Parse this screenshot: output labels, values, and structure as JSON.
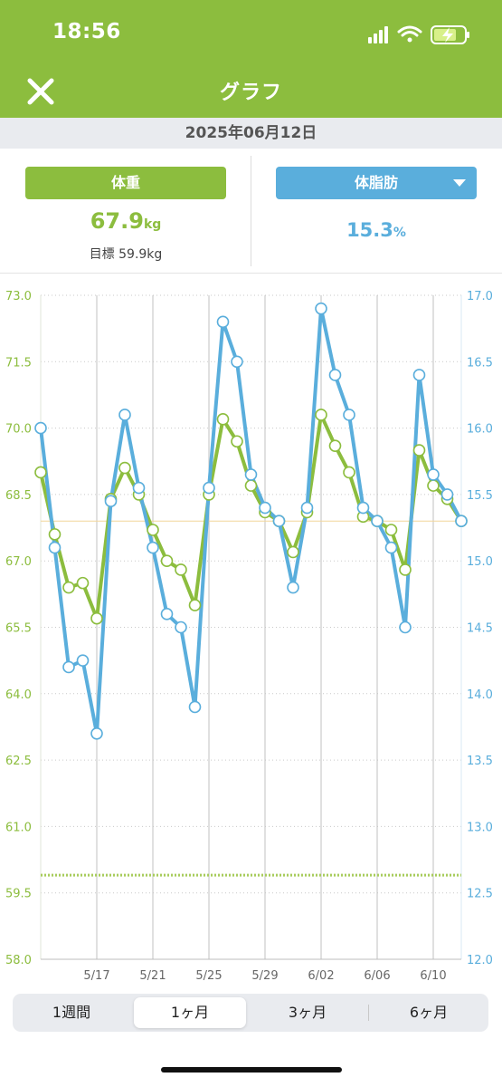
{
  "status": {
    "time": "18:56"
  },
  "nav": {
    "title": "グラフ",
    "close_icon": "close-icon"
  },
  "date": "2025年06月12日",
  "summary": {
    "weight_tab": "体重",
    "weight_value": "67.9",
    "weight_unit": "kg",
    "goal": "目標 59.9kg",
    "fat_tab": "体脂肪",
    "fat_value": "15.3",
    "fat_unit": "%"
  },
  "colors": {
    "brand_green": "#8cbd3e",
    "weight": "#8cbd3e",
    "fat": "#5aaedc"
  },
  "chart_data": {
    "type": "line",
    "title": "",
    "x": [
      "5/13",
      "5/14",
      "5/15",
      "5/16",
      "5/17",
      "5/18",
      "5/19",
      "5/20",
      "5/21",
      "5/22",
      "5/23",
      "5/24",
      "5/25",
      "5/26",
      "5/27",
      "5/28",
      "5/29",
      "5/30",
      "5/31",
      "6/01",
      "6/02",
      "6/03",
      "6/04",
      "6/05",
      "6/06",
      "6/07",
      "6/08",
      "6/09",
      "6/10",
      "6/11",
      "6/12"
    ],
    "x_tick_labels": [
      "5/17",
      "5/21",
      "5/25",
      "5/29",
      "6/02",
      "6/06",
      "6/10"
    ],
    "left_axis": {
      "ylim": [
        58.0,
        73.0
      ],
      "ticks": [
        "58.0",
        "59.5",
        "61.0",
        "62.5",
        "64.0",
        "65.5",
        "67.0",
        "68.5",
        "70.0",
        "71.5",
        "73.0"
      ]
    },
    "right_axis": {
      "ylim": [
        12.0,
        17.0
      ],
      "ticks": [
        "12.0",
        "12.5",
        "13.0",
        "13.5",
        "14.0",
        "14.5",
        "15.0",
        "15.5",
        "16.0",
        "16.5",
        "17.0"
      ]
    },
    "series": [
      {
        "axis": "left",
        "color": "#8cbd3e",
        "values": [
          69.0,
          67.6,
          66.4,
          66.5,
          65.7,
          68.4,
          69.1,
          68.5,
          67.7,
          67.0,
          66.8,
          66.0,
          68.5,
          70.2,
          69.7,
          68.7,
          68.1,
          67.9,
          67.2,
          68.1,
          70.3,
          69.6,
          69.0,
          68.0,
          67.9,
          67.7,
          66.8,
          69.5,
          68.7,
          68.4,
          67.9
        ]
      },
      {
        "axis": "right",
        "color": "#5aaedc",
        "values": [
          16.0,
          15.1,
          14.2,
          14.25,
          13.7,
          15.45,
          16.1,
          15.55,
          15.1,
          14.6,
          14.5,
          13.9,
          15.55,
          16.8,
          16.5,
          15.65,
          15.4,
          15.3,
          14.8,
          15.4,
          16.9,
          16.4,
          16.1,
          15.4,
          15.3,
          15.1,
          14.5,
          16.4,
          15.65,
          15.5,
          15.3
        ]
      }
    ],
    "reference_lines": [
      {
        "axis": "left",
        "value": 67.9,
        "style": "solid",
        "color": "#f2d59a"
      },
      {
        "axis": "left",
        "value": 59.9,
        "style": "dotted",
        "color": "#a8cc5c"
      }
    ],
    "grid": true,
    "legend": "none"
  },
  "periods": [
    "1週間",
    "1ヶ月",
    "3ヶ月",
    "6ヶ月"
  ],
  "active_period": "1ヶ月"
}
